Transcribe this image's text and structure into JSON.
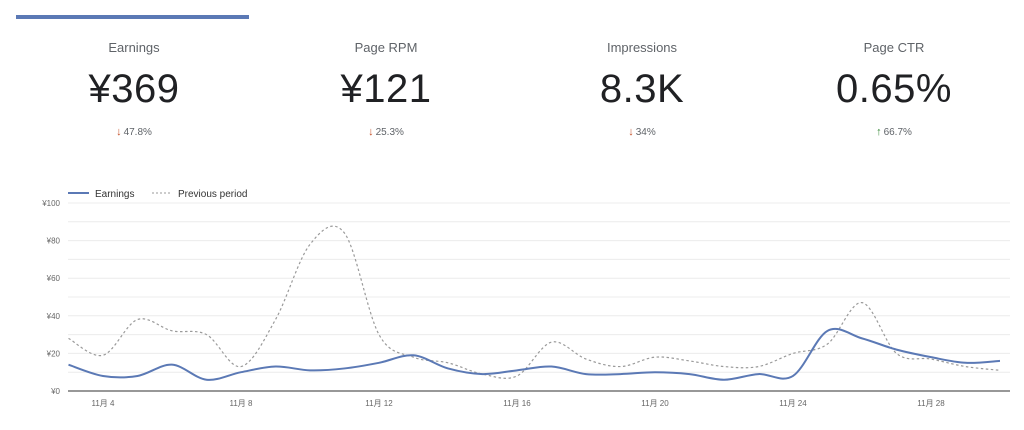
{
  "metrics": [
    {
      "label": "Earnings",
      "value": "¥369",
      "change": "47.8%",
      "direction": "down"
    },
    {
      "label": "Page RPM",
      "value": "¥121",
      "change": "25.3%",
      "direction": "down"
    },
    {
      "label": "Impressions",
      "value": "8.3K",
      "change": "34%",
      "direction": "down"
    },
    {
      "label": "Page CTR",
      "value": "0.65%",
      "change": "66.7%",
      "direction": "up"
    }
  ],
  "colors": {
    "accent": "#5b79b5",
    "down": "#c5522b",
    "up": "#3a8a3a",
    "previous": "#9a9a9a"
  },
  "chart_data": {
    "type": "line",
    "legend": [
      "Earnings",
      "Previous period"
    ],
    "legend_position": "top-left",
    "x": [
      3,
      4,
      5,
      6,
      7,
      8,
      9,
      10,
      11,
      12,
      13,
      14,
      15,
      16,
      17,
      18,
      19,
      20,
      21,
      22,
      23,
      24,
      25,
      26,
      27,
      28,
      29,
      30
    ],
    "x_ticks": [
      {
        "day": 4,
        "label": "11月 4"
      },
      {
        "day": 8,
        "label": "11月 8"
      },
      {
        "day": 12,
        "label": "11月 12"
      },
      {
        "day": 16,
        "label": "11月 16"
      },
      {
        "day": 20,
        "label": "11月 20"
      },
      {
        "day": 24,
        "label": "11月 24"
      },
      {
        "day": 28,
        "label": "11月 28"
      }
    ],
    "y_ticks": [
      {
        "v": 0,
        "label": "¥0"
      },
      {
        "v": 20,
        "label": "¥20"
      },
      {
        "v": 40,
        "label": "¥40"
      },
      {
        "v": 60,
        "label": "¥60"
      },
      {
        "v": 80,
        "label": "¥80"
      },
      {
        "v": 100,
        "label": "¥100"
      }
    ],
    "ylim": [
      0,
      100
    ],
    "series": [
      {
        "name": "Earnings",
        "values": [
          14,
          8,
          8,
          14,
          6,
          10,
          13,
          11,
          12,
          15,
          19,
          12,
          9,
          11,
          13,
          9,
          9,
          10,
          9,
          6,
          9,
          8,
          32,
          28,
          22,
          18,
          15,
          16
        ]
      },
      {
        "name": "Previous period",
        "values": [
          28,
          19,
          38,
          32,
          30,
          13,
          38,
          78,
          84,
          30,
          18,
          15,
          9,
          8,
          26,
          17,
          13,
          18,
          16,
          13,
          13,
          20,
          25,
          47,
          20,
          17,
          13,
          11
        ]
      }
    ]
  }
}
